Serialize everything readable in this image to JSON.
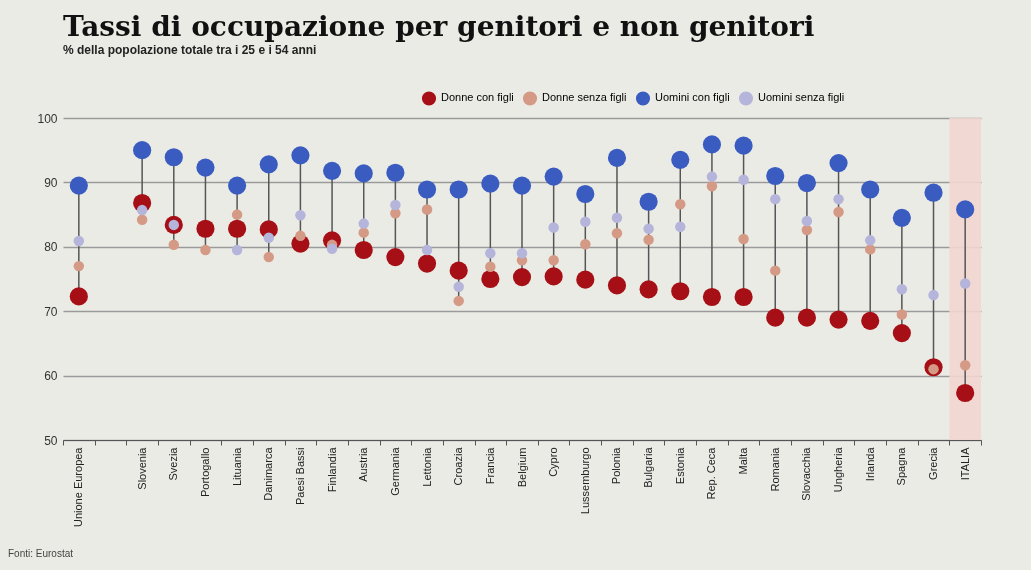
{
  "chart_data": {
    "type": "scatter",
    "title": "Tassi di occupazione per genitori e non genitori",
    "subtitle": "% della popolazione totale tra i 25 e i 54 anni",
    "categories": [
      "Unione Europea",
      null,
      "Slovenia",
      "Svezia",
      "Portogallo",
      "Lituania",
      "Danimarca",
      "Paesi Bassi",
      "Finlandia",
      "Austria",
      "Germania",
      "Lettonia",
      "Croazia",
      "Francia",
      "Belgium",
      "Cypro",
      "Lussemburgo",
      "Polonia",
      "Bulgaria",
      "Estonia",
      "Rep. Ceca",
      "Malta",
      "Romania",
      "Slovacchia",
      "Ungheria",
      "Irlanda",
      "Spagna",
      "Grecia",
      "ITALIA"
    ],
    "series": [
      {
        "name": "Donne con figli",
        "color": "#a50f15",
        "values": [
          72.3,
          null,
          86.8,
          83.4,
          82.8,
          82.8,
          82.7,
          80.5,
          81.0,
          79.5,
          78.4,
          77.4,
          76.3,
          75.0,
          75.3,
          75.4,
          74.9,
          74.0,
          73.4,
          73.1,
          72.2,
          72.2,
          69.0,
          69.0,
          68.7,
          68.5,
          66.6,
          61.3,
          57.3
        ]
      },
      {
        "name": "Donne senza figli",
        "color": "#d49a85",
        "values": [
          77.0,
          null,
          84.2,
          80.3,
          79.5,
          85.0,
          78.4,
          81.7,
          80.3,
          82.2,
          85.2,
          85.8,
          71.6,
          76.9,
          77.9,
          77.9,
          80.4,
          82.1,
          81.1,
          86.6,
          89.4,
          81.2,
          76.3,
          82.6,
          85.4,
          79.6,
          69.5,
          61.0,
          61.6
        ]
      },
      {
        "name": "Uomini con figli",
        "color": "#3a5bbf",
        "values": [
          89.5,
          null,
          95.0,
          93.9,
          92.3,
          89.5,
          92.8,
          94.2,
          91.8,
          91.4,
          91.5,
          88.9,
          88.9,
          89.8,
          89.5,
          90.9,
          88.2,
          93.8,
          87.0,
          93.5,
          95.9,
          95.7,
          91.0,
          89.9,
          93.0,
          88.9,
          84.5,
          88.4,
          85.8
        ]
      },
      {
        "name": "Uomini senza figli",
        "color": "#b5b5dc",
        "values": [
          80.9,
          null,
          85.7,
          83.4,
          null,
          79.5,
          81.4,
          84.9,
          79.7,
          83.6,
          86.5,
          79.5,
          73.8,
          79.0,
          79.0,
          83.0,
          83.9,
          84.5,
          82.8,
          83.1,
          90.9,
          90.4,
          87.4,
          84.0,
          87.4,
          81.0,
          73.4,
          72.5,
          74.3
        ]
      }
    ],
    "ylim": [
      50,
      100
    ],
    "yticks": [
      50,
      60,
      70,
      80,
      90,
      100
    ],
    "grid": "y",
    "legend": "top right",
    "marker": "circle",
    "bands": [
      {
        "axis": "x",
        "from": "ITALIA",
        "to": "ITALIA",
        "color": "#f2d6d0"
      }
    ],
    "annotations": [
      "Fonti: Eurostat"
    ]
  }
}
